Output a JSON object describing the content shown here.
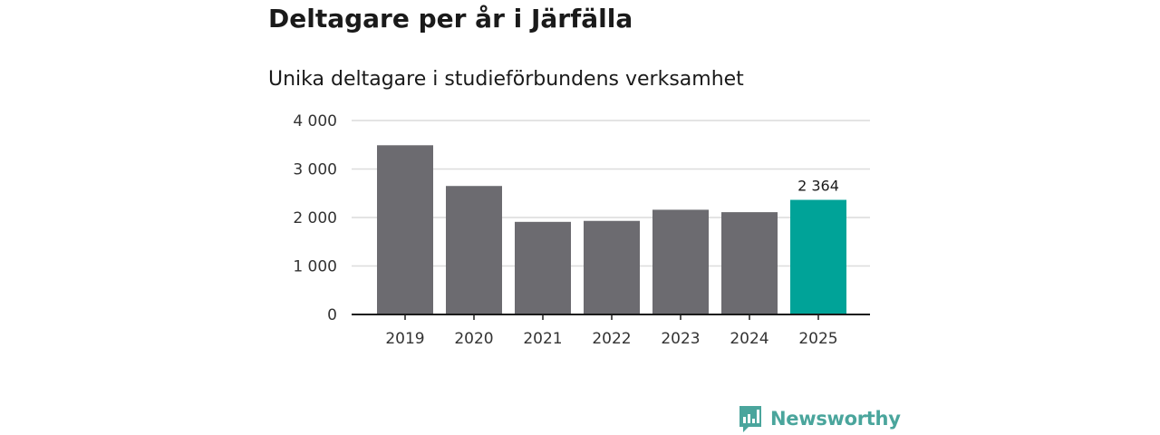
{
  "header": {
    "title": "Deltagare per år i Järfälla",
    "subtitle": "Unika deltagare i studieförbundens verksamhet"
  },
  "chart_data": {
    "type": "bar",
    "categories": [
      "2019",
      "2020",
      "2021",
      "2022",
      "2023",
      "2024",
      "2025"
    ],
    "values": [
      3490,
      2650,
      1910,
      1930,
      2160,
      2110,
      2364
    ],
    "ylim": [
      0,
      4000
    ],
    "yticks": [
      0,
      1000,
      2000,
      3000,
      4000
    ],
    "ytick_labels": [
      "0",
      "1 000",
      "2 000",
      "3 000",
      "4 000"
    ],
    "highlight_index": 6,
    "highlight_label": "2 364",
    "bar_color": "#6c6b70",
    "highlight_color": "#00a398",
    "grid": true,
    "title": "",
    "xlabel": "",
    "ylabel": ""
  },
  "branding": {
    "name": "Newsworthy",
    "color": "#4aa59c",
    "icon": "newsworthy-logo-icon"
  }
}
